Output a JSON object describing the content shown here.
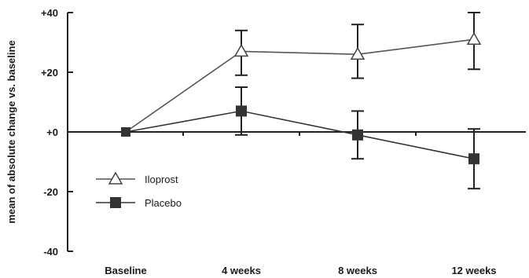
{
  "chart_data": {
    "type": "line",
    "title": "",
    "xlabel": "",
    "ylabel": "mean of absolute change vs. baseline",
    "ylim": [
      -40,
      40
    ],
    "yticks": [
      40,
      20,
      0,
      -20,
      -40
    ],
    "ytick_labels": [
      "+40",
      "+20",
      "+0",
      "-20",
      "-40"
    ],
    "categories": [
      "Baseline",
      "4 weeks",
      "8 weeks",
      "12 weeks"
    ],
    "grid": false,
    "legend": "lower-left",
    "series": [
      {
        "name": "Iloprost",
        "marker": "open-triangle",
        "color": "#555555",
        "values": [
          0,
          27,
          26,
          31
        ],
        "error_low": [
          0,
          19,
          18,
          21
        ],
        "error_high": [
          0,
          34,
          36,
          40
        ]
      },
      {
        "name": "Placebo",
        "marker": "filled-square",
        "color": "#333333",
        "values": [
          0,
          7,
          -1,
          -9
        ],
        "error_low": [
          0,
          -1,
          -9,
          -19
        ],
        "error_high": [
          0,
          15,
          7,
          1
        ]
      }
    ]
  }
}
